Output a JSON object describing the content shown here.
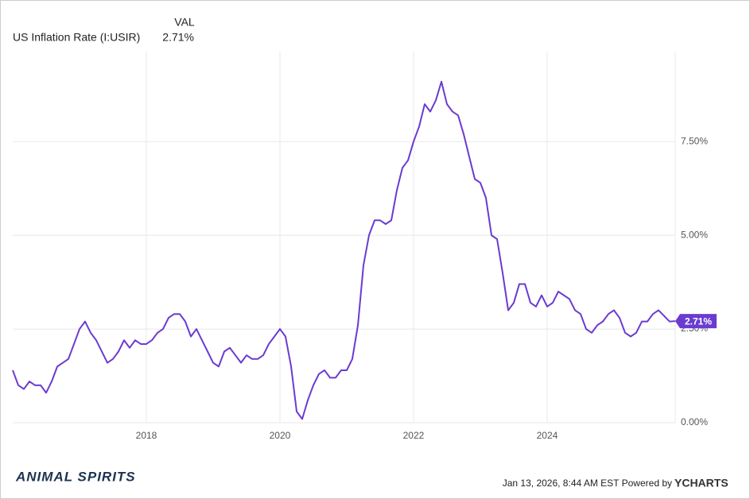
{
  "chart_data": {
    "type": "line",
    "legend_header": "VAL",
    "series": [
      {
        "name": "US Inflation Rate (I:USIR)",
        "legend_value": "2.71%",
        "color": "#6a3bd1",
        "x": [
          2016.0,
          2016.083,
          2016.167,
          2016.25,
          2016.333,
          2016.417,
          2016.5,
          2016.583,
          2016.667,
          2016.75,
          2016.833,
          2016.917,
          2017.0,
          2017.083,
          2017.167,
          2017.25,
          2017.333,
          2017.417,
          2017.5,
          2017.583,
          2017.667,
          2017.75,
          2017.833,
          2017.917,
          2018.0,
          2018.083,
          2018.167,
          2018.25,
          2018.333,
          2018.417,
          2018.5,
          2018.583,
          2018.667,
          2018.75,
          2018.833,
          2018.917,
          2019.0,
          2019.083,
          2019.167,
          2019.25,
          2019.333,
          2019.417,
          2019.5,
          2019.583,
          2019.667,
          2019.75,
          2019.833,
          2019.917,
          2020.0,
          2020.083,
          2020.167,
          2020.25,
          2020.333,
          2020.417,
          2020.5,
          2020.583,
          2020.667,
          2020.75,
          2020.833,
          2020.917,
          2021.0,
          2021.083,
          2021.167,
          2021.25,
          2021.333,
          2021.417,
          2021.5,
          2021.583,
          2021.667,
          2021.75,
          2021.833,
          2021.917,
          2022.0,
          2022.083,
          2022.167,
          2022.25,
          2022.333,
          2022.417,
          2022.5,
          2022.583,
          2022.667,
          2022.75,
          2022.833,
          2022.917,
          2023.0,
          2023.083,
          2023.167,
          2023.25,
          2023.333,
          2023.417,
          2023.5,
          2023.583,
          2023.667,
          2023.75,
          2023.833,
          2023.917,
          2024.0,
          2024.083,
          2024.167,
          2024.25,
          2024.333,
          2024.417,
          2024.5,
          2024.583,
          2024.667,
          2024.75,
          2024.833,
          2024.917,
          2025.0,
          2025.083,
          2025.167,
          2025.25,
          2025.333,
          2025.417,
          2025.5,
          2025.583,
          2025.667,
          2025.833,
          2025.917
        ],
        "values": [
          1.4,
          1.0,
          0.9,
          1.1,
          1.0,
          1.0,
          0.8,
          1.1,
          1.5,
          1.6,
          1.7,
          2.1,
          2.5,
          2.7,
          2.4,
          2.2,
          1.9,
          1.6,
          1.7,
          1.9,
          2.2,
          2.0,
          2.2,
          2.1,
          2.1,
          2.2,
          2.4,
          2.5,
          2.8,
          2.9,
          2.9,
          2.7,
          2.3,
          2.5,
          2.2,
          1.9,
          1.6,
          1.5,
          1.9,
          2.0,
          1.8,
          1.6,
          1.8,
          1.7,
          1.7,
          1.8,
          2.1,
          2.3,
          2.5,
          2.3,
          1.5,
          0.3,
          0.1,
          0.6,
          1.0,
          1.3,
          1.4,
          1.2,
          1.2,
          1.4,
          1.4,
          1.7,
          2.6,
          4.2,
          5.0,
          5.4,
          5.4,
          5.3,
          5.4,
          6.2,
          6.8,
          7.0,
          7.5,
          7.9,
          8.5,
          8.3,
          8.6,
          9.1,
          8.5,
          8.3,
          8.2,
          7.7,
          7.1,
          6.5,
          6.4,
          6.0,
          5.0,
          4.9,
          4.0,
          3.0,
          3.2,
          3.7,
          3.7,
          3.2,
          3.1,
          3.4,
          3.1,
          3.2,
          3.5,
          3.4,
          3.3,
          3.0,
          2.9,
          2.5,
          2.4,
          2.6,
          2.7,
          2.9,
          3.0,
          2.8,
          2.4,
          2.3,
          2.4,
          2.7,
          2.7,
          2.9,
          3.0,
          2.7,
          2.71
        ]
      }
    ],
    "xlim": [
      2016.0,
      2025.917
    ],
    "xticks": [
      2018,
      2020,
      2022,
      2024
    ],
    "ylim": [
      0,
      9.9
    ],
    "yticks": [
      {
        "value": 0,
        "label": "0.00%"
      },
      {
        "value": 2.5,
        "label": "2.50%"
      },
      {
        "value": 5,
        "label": "5.00%"
      },
      {
        "value": 7.5,
        "label": "7.50%"
      }
    ],
    "grid": true,
    "brand": "ANIMAL SPIRITS",
    "timestamp": "Jan 13, 2026, 8:44 AM EST Powered by",
    "provider": "YCHARTS"
  }
}
